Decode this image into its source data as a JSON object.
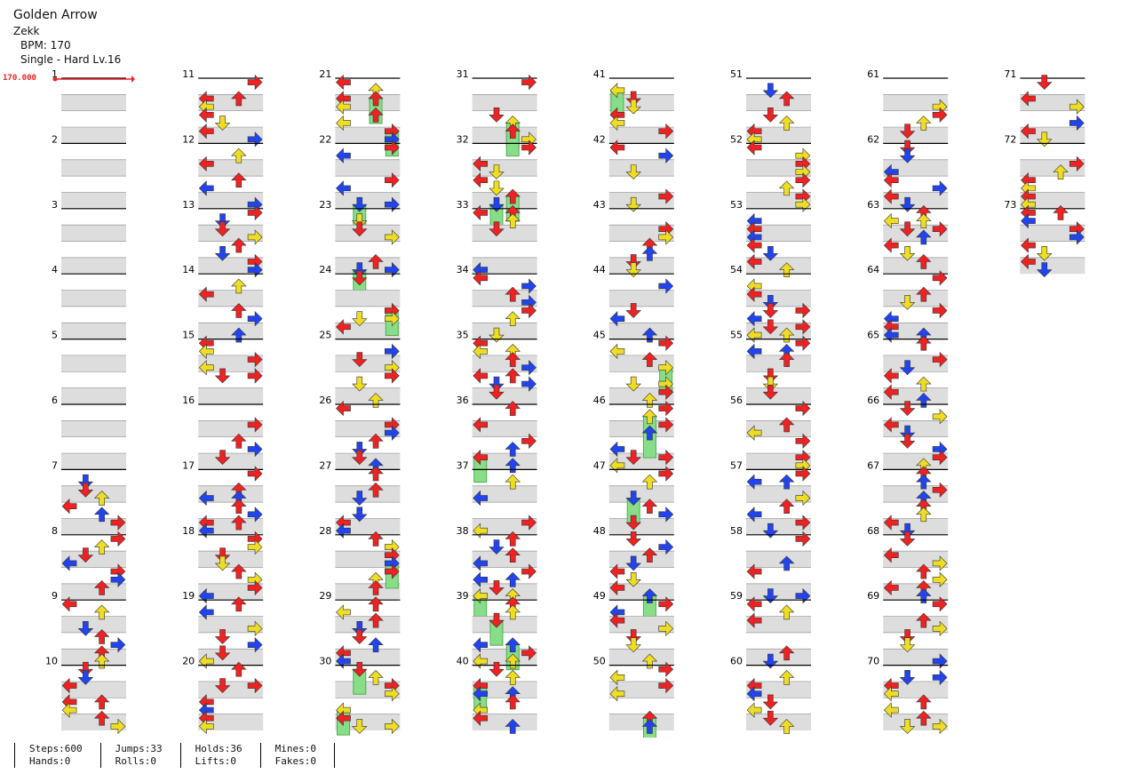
{
  "song": {
    "title": "Golden Arrow",
    "artist": "Zekk",
    "bpm_line": "BPM: 170",
    "difficulty_line": "Single - Hard  Lv.16"
  },
  "bpm_marker": "170.000",
  "chart": {
    "measures": 73,
    "columns": 8,
    "measures_per_column": 10,
    "arrow_colors": {
      "quarter": "#ee2222",
      "eighth": "#2244ee",
      "sixteenth": "#eedd22",
      "hold": "#88dd88"
    },
    "lane_icons": [
      "left-arrow-icon",
      "down-arrow-icon",
      "up-arrow-icon",
      "right-arrow-icon"
    ]
  },
  "stats": [
    {
      "a": "Steps:600",
      "b": "Hands:0"
    },
    {
      "a": "Jumps:33",
      "b": "Rolls:0"
    },
    {
      "a": "Holds:36",
      "b": "Lifts:0"
    },
    {
      "a": "Mines:0",
      "b": "Fakes:0"
    }
  ]
}
